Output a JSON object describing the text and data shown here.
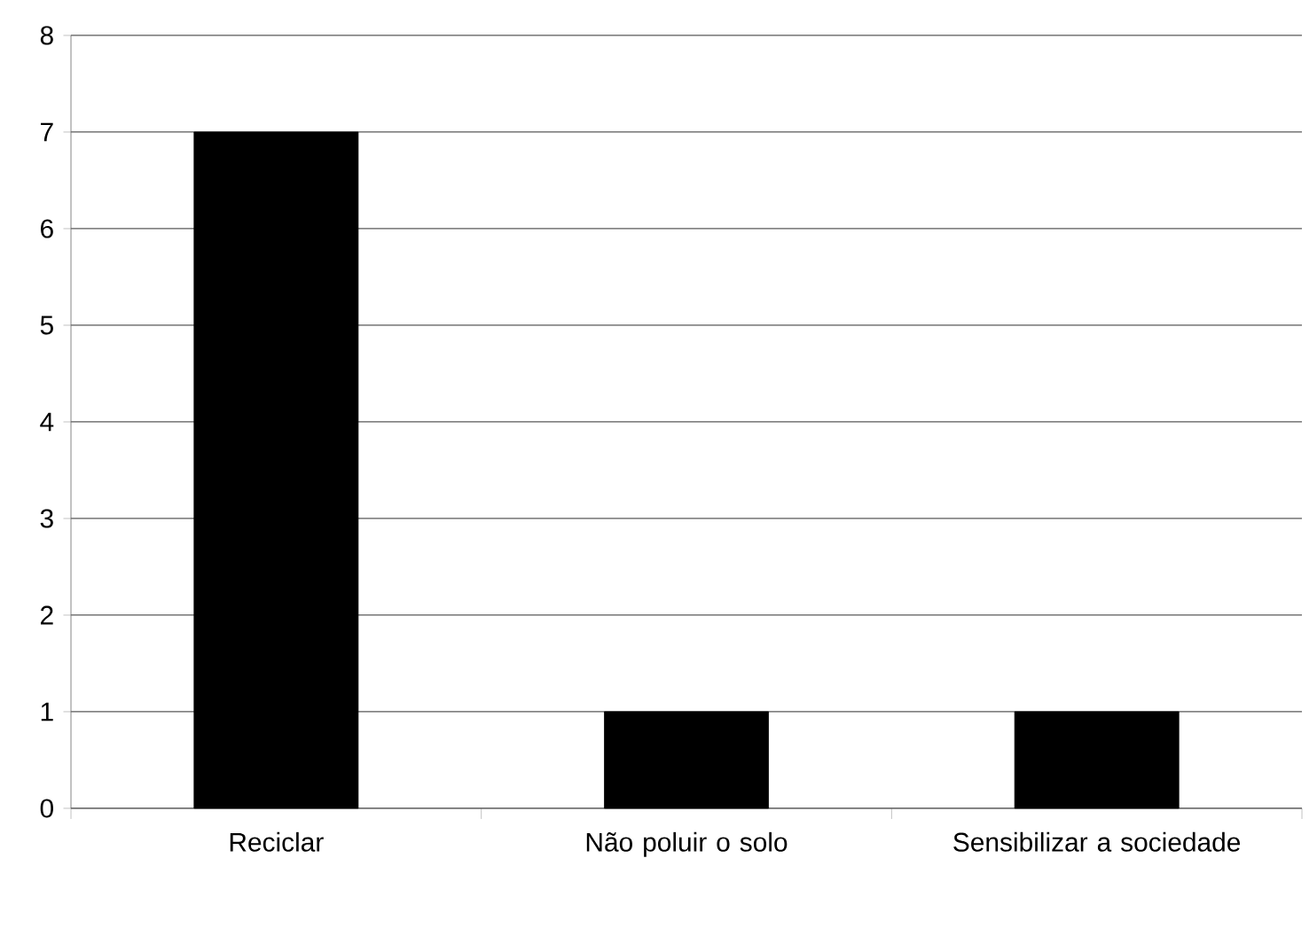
{
  "chart_data": {
    "type": "bar",
    "categories": [
      "Reciclar",
      "Não poluir o solo",
      "Sensibilizar a sociedade"
    ],
    "values": [
      7,
      1,
      1
    ],
    "color": "#000000",
    "ylim": [
      0,
      8
    ],
    "yticks": [
      0,
      1,
      2,
      3,
      4,
      5,
      6,
      7,
      8
    ],
    "grid": "y"
  }
}
